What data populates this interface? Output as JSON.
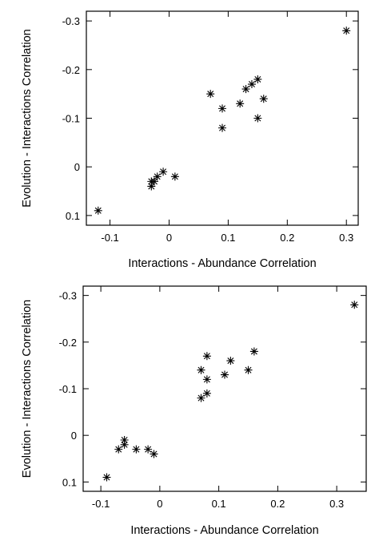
{
  "chart_data": [
    {
      "type": "scatter",
      "xlabel": "Interactions - Abundance Correlation",
      "ylabel": "Evolution - Interactions Correlation",
      "xlim": [
        -0.14,
        0.32
      ],
      "ylim": [
        0.12,
        -0.32
      ],
      "y_axis_inverted": true,
      "xticks": [
        -0.1,
        0,
        0.1,
        0.2,
        0.3
      ],
      "xtick_labels": [
        "-0.1",
        "0",
        "0.1",
        "0.2",
        "0.3"
      ],
      "yticks": [
        -0.3,
        -0.2,
        -0.1,
        0,
        0.1
      ],
      "ytick_labels": [
        "-0.3",
        "-0.2",
        "-0.1",
        "0",
        "0.1"
      ],
      "marker": "asterisk",
      "color": "#000000",
      "points": [
        {
          "x": 0.3,
          "y": -0.28
        },
        {
          "x": 0.15,
          "y": -0.18
        },
        {
          "x": 0.14,
          "y": -0.17
        },
        {
          "x": 0.13,
          "y": -0.16
        },
        {
          "x": 0.07,
          "y": -0.15
        },
        {
          "x": 0.16,
          "y": -0.14
        },
        {
          "x": 0.12,
          "y": -0.13
        },
        {
          "x": 0.09,
          "y": -0.12
        },
        {
          "x": 0.15,
          "y": -0.1
        },
        {
          "x": 0.09,
          "y": -0.08
        },
        {
          "x": -0.01,
          "y": 0.01
        },
        {
          "x": 0.01,
          "y": 0.02
        },
        {
          "x": -0.02,
          "y": 0.02
        },
        {
          "x": -0.025,
          "y": 0.03
        },
        {
          "x": -0.03,
          "y": 0.03
        },
        {
          "x": -0.03,
          "y": 0.04
        },
        {
          "x": -0.12,
          "y": 0.09
        }
      ]
    },
    {
      "type": "scatter",
      "xlabel": "Interactions - Abundance Correlation",
      "ylabel": "Evolution - Interactions Correlation",
      "xlim": [
        -0.13,
        0.35
      ],
      "ylim": [
        0.12,
        -0.32
      ],
      "y_axis_inverted": true,
      "xticks": [
        -0.1,
        0,
        0.1,
        0.2,
        0.3
      ],
      "xtick_labels": [
        "-0.1",
        "0",
        "0.1",
        "0.2",
        "0.3"
      ],
      "yticks": [
        -0.3,
        -0.2,
        -0.1,
        0,
        0.1
      ],
      "ytick_labels": [
        "-0.3",
        "-0.2",
        "-0.1",
        "0",
        "0.1"
      ],
      "marker": "asterisk",
      "color": "#000000",
      "points": [
        {
          "x": 0.33,
          "y": -0.28
        },
        {
          "x": 0.16,
          "y": -0.18
        },
        {
          "x": 0.08,
          "y": -0.17
        },
        {
          "x": 0.12,
          "y": -0.16
        },
        {
          "x": 0.07,
          "y": -0.14
        },
        {
          "x": 0.15,
          "y": -0.14
        },
        {
          "x": 0.11,
          "y": -0.13
        },
        {
          "x": 0.08,
          "y": -0.12
        },
        {
          "x": 0.08,
          "y": -0.09
        },
        {
          "x": 0.07,
          "y": -0.08
        },
        {
          "x": -0.06,
          "y": 0.01
        },
        {
          "x": -0.06,
          "y": 0.02
        },
        {
          "x": -0.07,
          "y": 0.03
        },
        {
          "x": -0.04,
          "y": 0.03
        },
        {
          "x": -0.02,
          "y": 0.03
        },
        {
          "x": -0.01,
          "y": 0.04
        },
        {
          "x": -0.09,
          "y": 0.09
        }
      ]
    }
  ]
}
